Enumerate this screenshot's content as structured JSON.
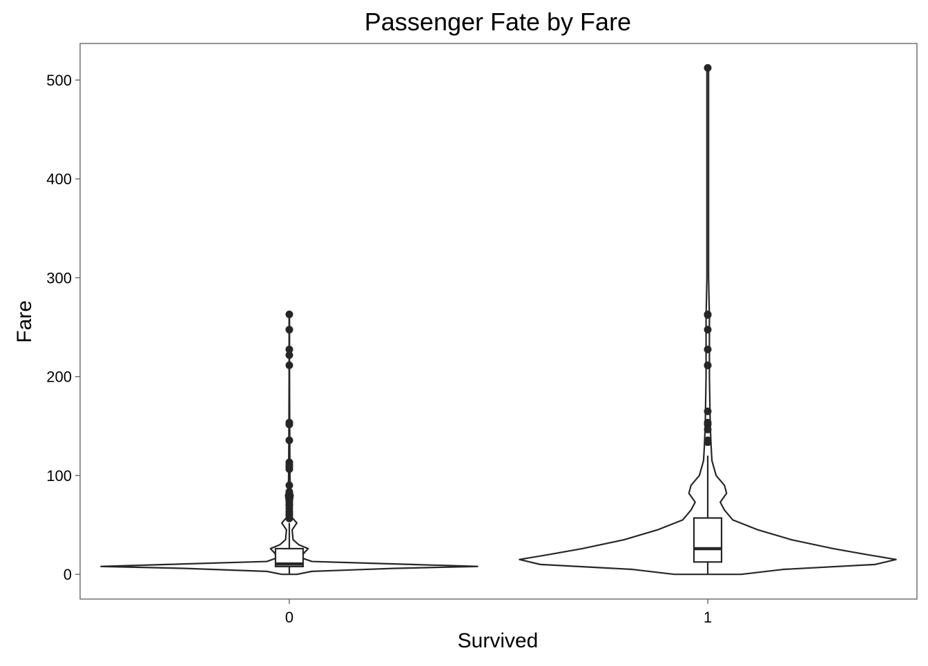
{
  "chart_data": {
    "type": "violin",
    "title": "Passenger Fate by Fare",
    "xlabel": "Survived",
    "ylabel": "Fare",
    "ylim": [
      -25,
      537
    ],
    "y_ticks": [
      0,
      100,
      200,
      300,
      400,
      500
    ],
    "categories": [
      "0",
      "1"
    ],
    "groups": [
      {
        "category": "0",
        "density": [
          [
            0,
            0.04
          ],
          [
            3,
            0.12
          ],
          [
            6,
            0.55
          ],
          [
            8,
            1.0
          ],
          [
            10,
            0.65
          ],
          [
            13,
            0.12
          ],
          [
            17,
            0.06
          ],
          [
            22,
            0.08
          ],
          [
            26,
            0.1
          ],
          [
            30,
            0.05
          ],
          [
            35,
            0.02
          ],
          [
            45,
            0.015
          ],
          [
            52,
            0.04
          ],
          [
            58,
            0.012
          ],
          [
            65,
            0.01
          ],
          [
            72,
            0.014
          ],
          [
            80,
            0.02
          ],
          [
            86,
            0.008
          ],
          [
            95,
            0.004
          ],
          [
            110,
            0.003
          ],
          [
            150,
            0.002
          ],
          [
            200,
            0.001
          ],
          [
            263,
            0.001
          ]
        ],
        "box": {
          "q1": 7.9,
          "median": 10.5,
          "q3": 26,
          "whisker_low": 0,
          "whisker_high": 52
        },
        "outliers": [
          56.5,
          59.4,
          61.2,
          63.4,
          66.6,
          69.5,
          71,
          73.5,
          76.7,
          77.3,
          79.2,
          79.7,
          82.2,
          83.5,
          90,
          106.4,
          108.9,
          110.9,
          113.3,
          135.6,
          151.6,
          153.5,
          211.5,
          221.8,
          227.5,
          247.5,
          263
        ]
      },
      {
        "category": "1",
        "density": [
          [
            0,
            0.08
          ],
          [
            5,
            0.18
          ],
          [
            10,
            0.4
          ],
          [
            15,
            0.45
          ],
          [
            20,
            0.38
          ],
          [
            26,
            0.3
          ],
          [
            35,
            0.2
          ],
          [
            45,
            0.12
          ],
          [
            55,
            0.06
          ],
          [
            65,
            0.04
          ],
          [
            73,
            0.03
          ],
          [
            82,
            0.045
          ],
          [
            90,
            0.04
          ],
          [
            100,
            0.02
          ],
          [
            115,
            0.01
          ],
          [
            130,
            0.008
          ],
          [
            150,
            0.006
          ],
          [
            200,
            0.004
          ],
          [
            260,
            0.004
          ],
          [
            300,
            0.002
          ],
          [
            400,
            0.002
          ],
          [
            512,
            0.002
          ]
        ],
        "box": {
          "q1": 12.5,
          "median": 26,
          "q3": 57,
          "whisker_low": 0,
          "whisker_high": 120
        },
        "outliers": [
          133.7,
          134.5,
          135.6,
          146.5,
          151.6,
          153.5,
          164.9,
          211.3,
          211.5,
          227.5,
          247.5,
          262.4,
          263,
          512.3
        ]
      }
    ],
    "grid": false,
    "legend": "none"
  }
}
